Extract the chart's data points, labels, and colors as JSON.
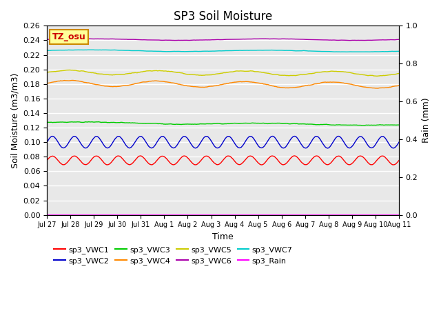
{
  "title": "SP3 Soil Moisture",
  "xlabel": "Time",
  "ylabel_left": "Soil Moisture (m3/m3)",
  "ylabel_right": "Rain (mm)",
  "ylim_left": [
    0.0,
    0.26
  ],
  "ylim_right": [
    0.0,
    1.0
  ],
  "bg_color": "#e8e8e8",
  "n_points": 1600,
  "xtick_labels": [
    "Jul 27",
    "Jul 28",
    "Jul 29",
    "Jul 30",
    "Jul 31",
    "Aug 1",
    "Aug 2",
    "Aug 3",
    "Aug 4",
    "Aug 5",
    "Aug 6",
    "Aug 7",
    "Aug 8",
    "Aug 9",
    "Aug 10",
    "Aug 11"
  ],
  "series": {
    "sp3_VWC1": {
      "color": "#ff0000",
      "base": 0.075,
      "amp": 0.006,
      "cycles": 16,
      "noise": 0.0005,
      "trend": 0.0
    },
    "sp3_VWC2": {
      "color": "#0000cc",
      "base": 0.1,
      "amp": 0.008,
      "cycles": 16,
      "noise": 0.0005,
      "trend": 0.0
    },
    "sp3_VWC3": {
      "color": "#00cc00",
      "base": 0.127,
      "amp": 0.001,
      "cycles": 2,
      "noise": 0.001,
      "trend": -0.003
    },
    "sp3_VWC4": {
      "color": "#ff8800",
      "base": 0.181,
      "amp": 0.004,
      "cycles": 4,
      "noise": 0.001,
      "trend": -0.003
    },
    "sp3_VWC5": {
      "color": "#cccc00",
      "base": 0.196,
      "amp": 0.003,
      "cycles": 4,
      "noise": 0.001,
      "trend": -0.002
    },
    "sp3_VWC6": {
      "color": "#aa00aa",
      "base": 0.241,
      "amp": 0.001,
      "cycles": 2,
      "noise": 0.0005,
      "trend": 0.0
    },
    "sp3_VWC7": {
      "color": "#00cccc",
      "base": 0.226,
      "amp": 0.001,
      "cycles": 2,
      "noise": 0.0005,
      "trend": -0.001
    },
    "sp3_Rain": {
      "color": "#ff00ff",
      "base": 0.0,
      "amp": 0.0,
      "cycles": 1,
      "noise": 0.0,
      "trend": 0.0
    }
  },
  "legend_order": [
    "sp3_VWC1",
    "sp3_VWC2",
    "sp3_VWC3",
    "sp3_VWC4",
    "sp3_VWC5",
    "sp3_VWC6",
    "sp3_VWC7",
    "sp3_Rain"
  ],
  "tz_label": "TZ_osu",
  "tz_bg": "#ffff99",
  "tz_border": "#cc8800"
}
